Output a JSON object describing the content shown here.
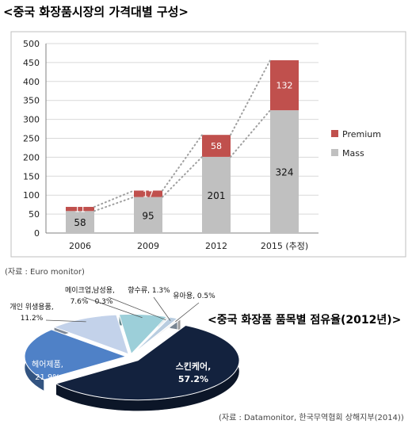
{
  "chart_data": [
    {
      "type": "bar",
      "title": "<중국 화장품시장의 가격대별 구성>",
      "source": "(자료 : Euro monitor)",
      "categories": [
        "2006",
        "2009",
        "2012",
        "2015 (추정)"
      ],
      "series": [
        {
          "name": "Mass",
          "color": "#c0c0c0",
          "values": [
            58,
            95,
            201,
            324
          ]
        },
        {
          "name": "Premium",
          "color": "#c0504d",
          "values": [
            11,
            17,
            58,
            132
          ]
        }
      ],
      "ylim": [
        0,
        500
      ],
      "yticks": [
        "0",
        "50",
        "100",
        "150",
        "200",
        "250",
        "300",
        "350",
        "400",
        "450",
        "500"
      ],
      "grid": true,
      "legend": "right",
      "trendlines": true
    },
    {
      "type": "pie",
      "title": "<중국 화장품 품목별 점유율(2012년)>",
      "source": "(자료 : Datamonitor, 한국무역협회 상해지부(2014))",
      "slices": [
        {
          "label": "스킨케어,",
          "value": 57.2,
          "text": "57.2%",
          "color": "#13223e"
        },
        {
          "label": "헤어제품,",
          "value": 21.9,
          "text": "21.9%",
          "color": "#4f81c7"
        },
        {
          "label": "개인 위생용품,",
          "value": 11.2,
          "text": "11.2%",
          "color": "#c3d2ea"
        },
        {
          "label": "메이크업,",
          "value": 7.6,
          "text": "7.6%",
          "color": "#9ccfd9"
        },
        {
          "label": "남성용,",
          "value": 0.3,
          "text": "0.3%",
          "color": "#dce9ef"
        },
        {
          "label": "향수류,",
          "value": 1.3,
          "text": "1.3%",
          "color": "#b9cde0"
        },
        {
          "label": "유아용,",
          "value": 0.5,
          "text": "0.5%",
          "color": "#f2f2f2"
        }
      ]
    }
  ]
}
